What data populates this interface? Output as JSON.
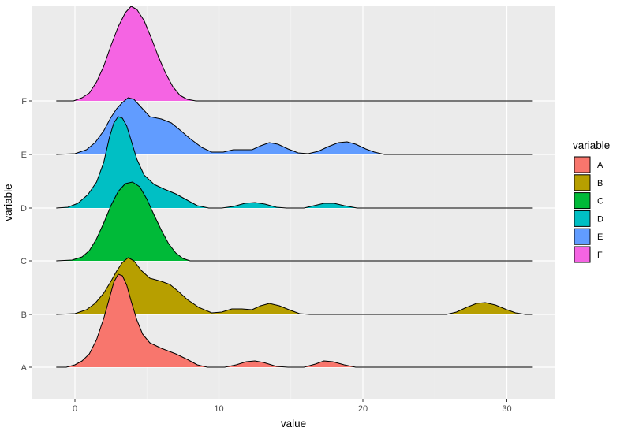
{
  "chart_data": {
    "type": "ridgeline",
    "title": "",
    "xlabel": "value",
    "ylabel": "variable",
    "xlim": [
      -3,
      33
    ],
    "x_ticks": [
      0,
      10,
      20,
      30
    ],
    "x_tick_labels": [
      "0",
      "10",
      "20",
      "30"
    ],
    "categories": [
      "A",
      "B",
      "C",
      "D",
      "E",
      "F"
    ],
    "grid": true,
    "legend": {
      "title": "variable",
      "position": "right",
      "entries": [
        {
          "label": "A",
          "color": "#F8766D"
        },
        {
          "label": "B",
          "color": "#B79F00"
        },
        {
          "label": "C",
          "color": "#00BA38"
        },
        {
          "label": "D",
          "color": "#00BFC4"
        },
        {
          "label": "E",
          "color": "#619CFF"
        },
        {
          "label": "F",
          "color": "#F564E3"
        }
      ]
    },
    "series": [
      {
        "name": "A",
        "color": "#F8766D",
        "line_range": [
          -1.3,
          31.8
        ],
        "points": [
          [
            -1.3,
            0
          ],
          [
            -0.6,
            0
          ],
          [
            0,
            3
          ],
          [
            0.5,
            8
          ],
          [
            1,
            17
          ],
          [
            1.5,
            35
          ],
          [
            2,
            62
          ],
          [
            2.4,
            88
          ],
          [
            2.7,
            108
          ],
          [
            3.0,
            118
          ],
          [
            3.3,
            116
          ],
          [
            3.6,
            104
          ],
          [
            3.9,
            84
          ],
          [
            4.3,
            60
          ],
          [
            4.7,
            42
          ],
          [
            5.2,
            31
          ],
          [
            6,
            24
          ],
          [
            7,
            17
          ],
          [
            7.8,
            10
          ],
          [
            8.5,
            3
          ],
          [
            9.2,
            0
          ],
          [
            10.4,
            0
          ],
          [
            11.2,
            3
          ],
          [
            11.9,
            7
          ],
          [
            12.5,
            8
          ],
          [
            13.1,
            6
          ],
          [
            14,
            1
          ],
          [
            14.8,
            0
          ],
          [
            15.9,
            0
          ],
          [
            16.7,
            4
          ],
          [
            17.3,
            8
          ],
          [
            17.9,
            7
          ],
          [
            18.7,
            3
          ],
          [
            19.5,
            0
          ],
          [
            31.8,
            0
          ]
        ]
      },
      {
        "name": "B",
        "color": "#B79F00",
        "line_range": [
          -1.3,
          31.8
        ],
        "points": [
          [
            -1.3,
            0
          ],
          [
            0,
            1
          ],
          [
            0.8,
            6
          ],
          [
            1.4,
            14
          ],
          [
            2,
            27
          ],
          [
            2.5,
            42
          ],
          [
            2.9,
            55
          ],
          [
            3.3,
            66
          ],
          [
            3.7,
            72
          ],
          [
            4.1,
            68
          ],
          [
            4.6,
            56
          ],
          [
            5.2,
            46
          ],
          [
            6,
            42
          ],
          [
            6.6,
            38
          ],
          [
            7.2,
            29
          ],
          [
            7.8,
            19
          ],
          [
            8.6,
            9
          ],
          [
            9.5,
            2
          ],
          [
            10.2,
            3
          ],
          [
            10.9,
            7
          ],
          [
            11.6,
            7
          ],
          [
            12.3,
            6
          ],
          [
            12.9,
            11
          ],
          [
            13.5,
            14
          ],
          [
            14.2,
            11
          ],
          [
            15,
            5
          ],
          [
            15.6,
            1
          ],
          [
            16.3,
            0
          ],
          [
            25.8,
            0
          ],
          [
            26.5,
            3
          ],
          [
            27.2,
            9
          ],
          [
            27.9,
            14
          ],
          [
            28.5,
            15
          ],
          [
            29.2,
            12
          ],
          [
            30,
            6
          ],
          [
            30.6,
            2
          ],
          [
            31.3,
            0
          ],
          [
            31.8,
            0
          ]
        ]
      },
      {
        "name": "C",
        "color": "#00BA38",
        "line_range": [
          -1.3,
          31.8
        ],
        "points": [
          [
            -1.3,
            0
          ],
          [
            -0.2,
            1
          ],
          [
            0.5,
            5
          ],
          [
            1,
            13
          ],
          [
            1.5,
            28
          ],
          [
            2,
            48
          ],
          [
            2.5,
            70
          ],
          [
            3,
            88
          ],
          [
            3.5,
            98
          ],
          [
            4,
            100
          ],
          [
            4.5,
            94
          ],
          [
            5,
            78
          ],
          [
            5.5,
            58
          ],
          [
            6,
            39
          ],
          [
            6.5,
            22
          ],
          [
            7,
            10
          ],
          [
            7.5,
            3
          ],
          [
            8,
            0
          ],
          [
            31.8,
            0
          ]
        ]
      },
      {
        "name": "D",
        "color": "#00BFC4",
        "line_range": [
          -1.3,
          31.8
        ],
        "points": [
          [
            -1.3,
            0
          ],
          [
            -0.5,
            1
          ],
          [
            0.2,
            6
          ],
          [
            0.9,
            17
          ],
          [
            1.5,
            33
          ],
          [
            2.0,
            58
          ],
          [
            2.4,
            90
          ],
          [
            2.7,
            108
          ],
          [
            3.0,
            116
          ],
          [
            3.3,
            114
          ],
          [
            3.6,
            104
          ],
          [
            3.9,
            86
          ],
          [
            4.3,
            62
          ],
          [
            4.8,
            42
          ],
          [
            5.5,
            30
          ],
          [
            6.2,
            24
          ],
          [
            7,
            18
          ],
          [
            7.8,
            10
          ],
          [
            8.5,
            3
          ],
          [
            9.3,
            0
          ],
          [
            10.2,
            0
          ],
          [
            11,
            2
          ],
          [
            11.8,
            6
          ],
          [
            12.5,
            7
          ],
          [
            13.2,
            5
          ],
          [
            14,
            1
          ],
          [
            14.7,
            0
          ],
          [
            15.9,
            0
          ],
          [
            16.6,
            3
          ],
          [
            17.3,
            6
          ],
          [
            18,
            6
          ],
          [
            18.7,
            3
          ],
          [
            19.6,
            0
          ],
          [
            31.8,
            0
          ]
        ]
      },
      {
        "name": "E",
        "color": "#619CFF",
        "line_range": [
          -1.3,
          31.8
        ],
        "points": [
          [
            -1.3,
            0
          ],
          [
            0,
            1
          ],
          [
            0.8,
            6
          ],
          [
            1.4,
            15
          ],
          [
            2,
            30
          ],
          [
            2.5,
            47
          ],
          [
            2.9,
            58
          ],
          [
            3.3,
            66
          ],
          [
            3.7,
            72
          ],
          [
            4.1,
            70
          ],
          [
            4.6,
            60
          ],
          [
            5.2,
            48
          ],
          [
            6,
            45
          ],
          [
            6.7,
            40
          ],
          [
            7.3,
            31
          ],
          [
            8,
            20
          ],
          [
            8.8,
            9
          ],
          [
            9.5,
            3
          ],
          [
            10.3,
            3
          ],
          [
            11,
            6
          ],
          [
            11.7,
            6
          ],
          [
            12.3,
            6
          ],
          [
            12.9,
            11
          ],
          [
            13.5,
            15
          ],
          [
            14.1,
            13
          ],
          [
            14.8,
            7
          ],
          [
            15.5,
            2
          ],
          [
            16.2,
            1
          ],
          [
            16.9,
            4
          ],
          [
            17.6,
            10
          ],
          [
            18.3,
            15
          ],
          [
            18.9,
            16
          ],
          [
            19.5,
            13
          ],
          [
            20.2,
            7
          ],
          [
            20.8,
            3
          ],
          [
            21.5,
            0
          ],
          [
            31.8,
            0
          ]
        ]
      },
      {
        "name": "F",
        "color": "#F564E3",
        "line_range": [
          -1.3,
          31.8
        ],
        "points": [
          [
            -1.3,
            0
          ],
          [
            -0.1,
            0
          ],
          [
            0.5,
            4
          ],
          [
            1,
            10
          ],
          [
            1.5,
            24
          ],
          [
            2,
            44
          ],
          [
            2.5,
            70
          ],
          [
            3,
            94
          ],
          [
            3.5,
            112
          ],
          [
            3.9,
            120
          ],
          [
            4.3,
            116
          ],
          [
            4.8,
            102
          ],
          [
            5.3,
            80
          ],
          [
            5.8,
            56
          ],
          [
            6.3,
            35
          ],
          [
            6.8,
            18
          ],
          [
            7.3,
            7
          ],
          [
            7.8,
            2
          ],
          [
            8.4,
            0
          ],
          [
            31.8,
            0
          ]
        ]
      }
    ]
  },
  "axes": {
    "x_title": "value",
    "y_title": "variable",
    "x_tick_labels": [
      "0",
      "10",
      "20",
      "30"
    ],
    "y_tick_labels": [
      "A",
      "B",
      "C",
      "D",
      "E",
      "F"
    ]
  },
  "legend": {
    "title": "variable",
    "labels": [
      "A",
      "B",
      "C",
      "D",
      "E",
      "F"
    ]
  }
}
